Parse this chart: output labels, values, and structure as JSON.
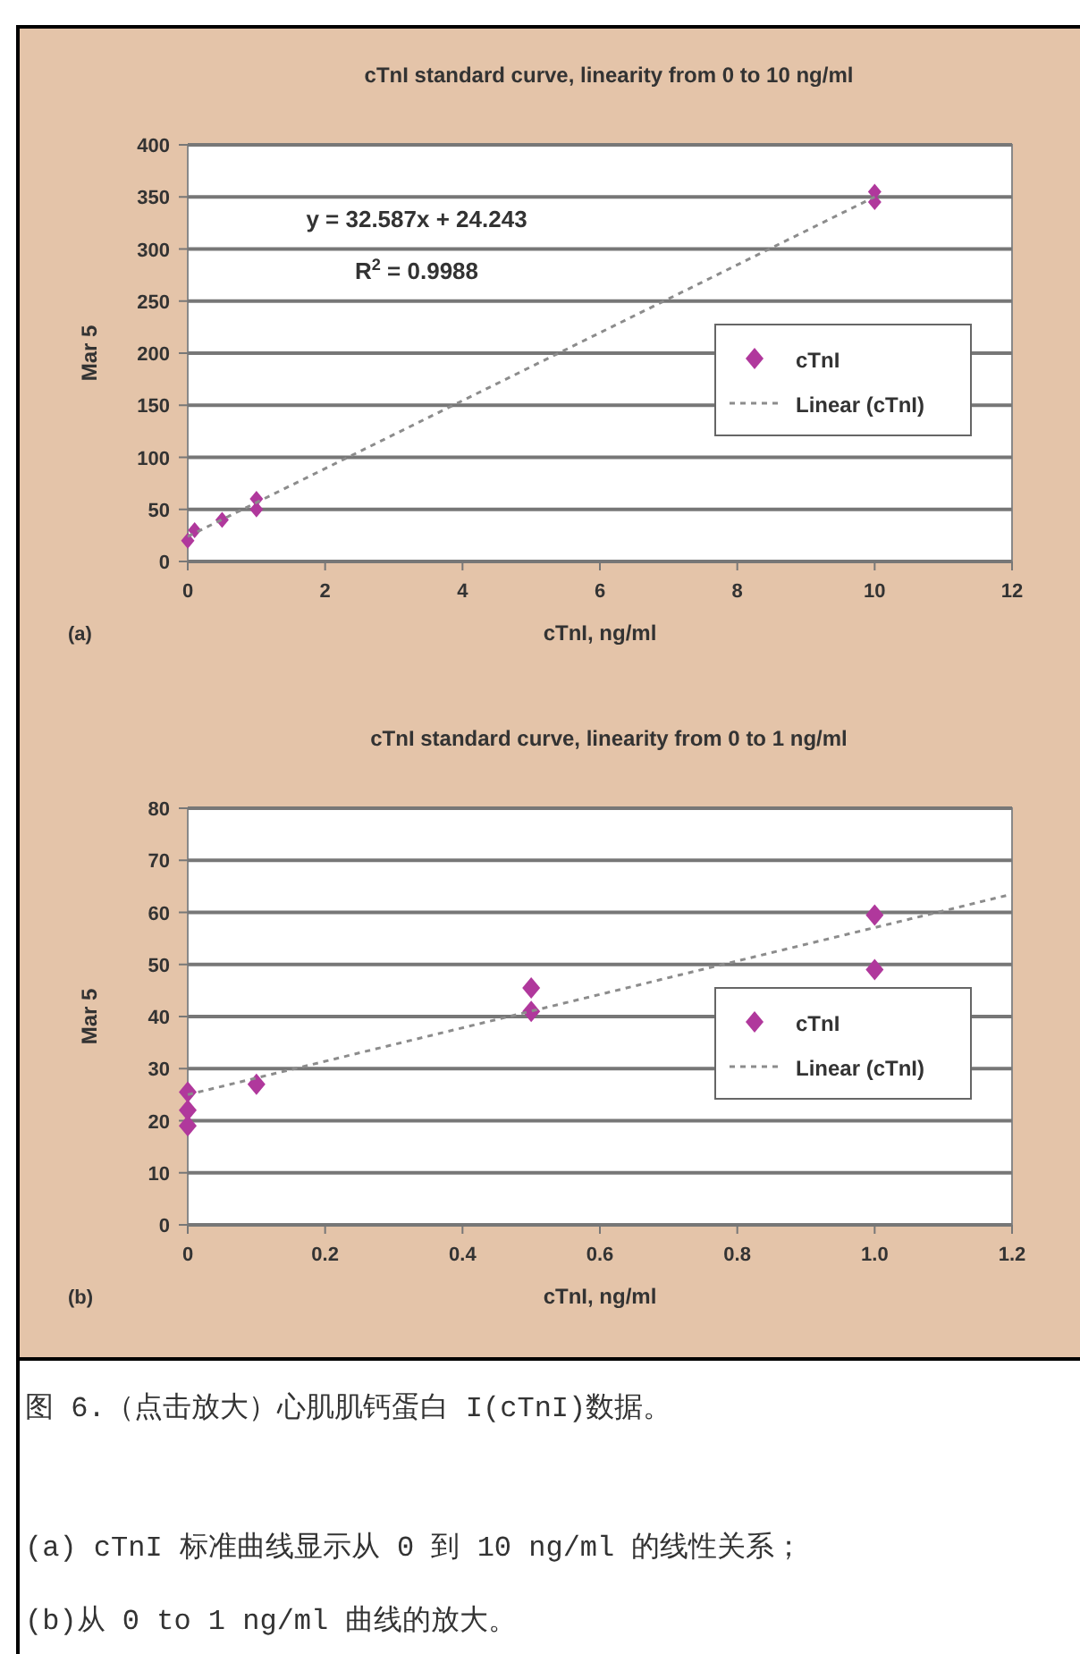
{
  "chart_data": [
    {
      "type": "scatter",
      "title": "cTnI standard curve, linearity from 0 to 10 ng/ml",
      "xlabel": "cTnI, ng/ml",
      "ylabel": "Mar 5",
      "xlim": [
        0,
        12
      ],
      "xticks": [
        0,
        2,
        4,
        6,
        8,
        10,
        12
      ],
      "ylim": [
        0,
        400
      ],
      "yticks": [
        0,
        50,
        100,
        150,
        200,
        250,
        300,
        350,
        400
      ],
      "grid": "y",
      "legend": "right",
      "series": [
        {
          "name": "cTnI",
          "color": "#b0389c",
          "marker": "diamond",
          "x": [
            0,
            0.1,
            0.5,
            1,
            1,
            10,
            10
          ],
          "values": [
            20,
            30,
            40,
            50,
            60,
            345,
            355
          ]
        },
        {
          "name": "Linear (cTnI)",
          "type": "line",
          "color": "#8c8c8c",
          "marker": "none",
          "line_style": "dashed",
          "x": [
            0,
            10
          ],
          "values": [
            24,
            350
          ]
        }
      ],
      "annotations": [
        "y = 32.587x + 24.243",
        "R$^{2}$ = 0.9988",
        "(a)"
      ]
    },
    {
      "type": "scatter",
      "title": "cTnI standard curve, linearity from 0 to 1 ng/ml",
      "xlabel": "cTnI, ng/ml",
      "ylabel": "Mar 5",
      "xlim": [
        0,
        1.2
      ],
      "xticks": [
        {
          "value": 0,
          "label": "0"
        },
        0.2,
        0.4,
        0.6,
        0.8,
        {
          "value": 1,
          "label": "1.0"
        },
        1.2
      ],
      "ylim": [
        0,
        80
      ],
      "yticks": [
        0,
        10,
        20,
        30,
        40,
        50,
        60,
        70,
        80
      ],
      "grid": "y",
      "legend": "right",
      "series": [
        {
          "name": "cTnI",
          "color": "#b0389c",
          "marker": "diamond",
          "x": [
            0,
            0,
            0,
            0.1,
            0.5,
            0.5,
            1,
            1
          ],
          "values": [
            19,
            22,
            25.5,
            27,
            41,
            45.5,
            49,
            59.5
          ]
        },
        {
          "name": "Linear (cTnI)",
          "type": "line",
          "color": "#8c8c8c",
          "marker": "none",
          "line_style": "dashed",
          "x": [
            0,
            1.2
          ],
          "values": [
            25,
            63.5
          ]
        }
      ],
      "annotations": [
        "(b)",
        "图 6.（点击放大）心肌肌钙蛋白 I(cTnI)数据。",
        "(a) cTnI 标准曲线显示从 0 到 10 ng/ml 的线性关系；",
        "(b)从 0 to 1 ng/ml 曲线的放大。"
      ]
    }
  ]
}
